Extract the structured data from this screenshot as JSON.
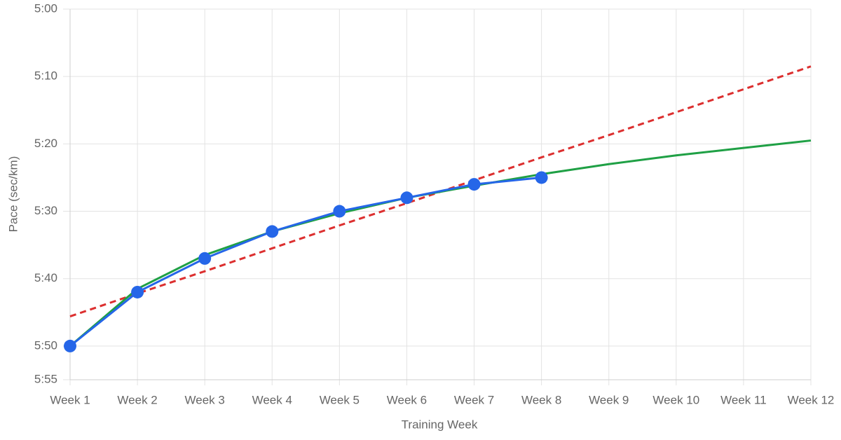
{
  "chart_data": {
    "type": "line",
    "x_label": "Training Week",
    "y_label": "Pace (sec/km)",
    "categories": [
      "Week 1",
      "Week 2",
      "Week 3",
      "Week 4",
      "Week 5",
      "Week 6",
      "Week 7",
      "Week 8",
      "Week 9",
      "Week 10",
      "Week 11",
      "Week 12"
    ],
    "series": [
      {
        "color": "#dc2f2f",
        "dashed": true,
        "markers": false,
        "values": [
          345.6,
          342.2,
          338.9,
          335.5,
          332.1,
          328.8,
          325.4,
          322.0,
          318.7,
          315.3,
          311.9,
          308.5
        ]
      },
      {
        "color": "#1fa045",
        "dashed": false,
        "markers": false,
        "values": [
          350,
          341.5,
          336.5,
          333,
          330.3,
          328,
          326.2,
          324.5,
          323.0,
          321.7,
          320.6,
          319.5
        ]
      },
      {
        "color": "#2566e8",
        "dashed": false,
        "markers": true,
        "values": [
          350,
          342,
          337,
          333,
          330,
          328,
          326,
          325,
          null,
          null,
          null,
          null
        ]
      }
    ],
    "ylim": [
      355,
      300
    ],
    "yticks": [
      {
        "value": 300,
        "label": "5:00"
      },
      {
        "value": 310,
        "label": "5:10"
      },
      {
        "value": 320,
        "label": "5:20"
      },
      {
        "value": 330,
        "label": "5:30"
      },
      {
        "value": 340,
        "label": "5:40"
      },
      {
        "value": 350,
        "label": "5:50"
      },
      {
        "value": 355,
        "label": "5:55"
      }
    ],
    "grid": true
  }
}
